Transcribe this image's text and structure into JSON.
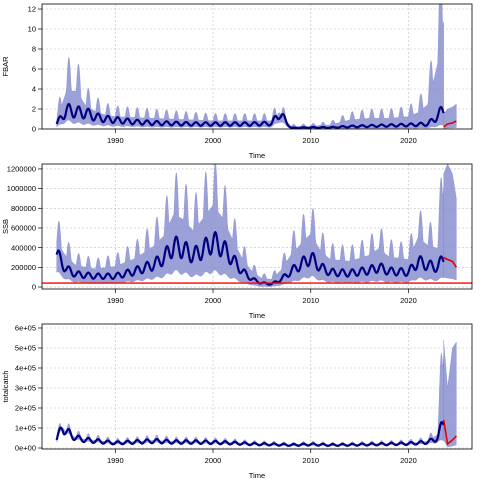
{
  "chart_data": [
    {
      "type": "area",
      "xlabel": "Time",
      "ylabel": "FBAR",
      "xlim": [
        1982.5,
        2026.5
      ],
      "ylim": [
        0,
        12.5
      ],
      "x_ticks": [
        1990,
        2000,
        2010,
        2020
      ],
      "y_ticks": [
        0,
        2,
        4,
        6,
        8,
        10,
        12
      ],
      "y_tick_labels": [
        "0",
        "2",
        "4",
        "6",
        "8",
        "10",
        "12"
      ],
      "grid": true,
      "estimate_end": 2023.6,
      "forecast_end": 2024.9,
      "series": [
        {
          "name": "",
          "x": [
            1984,
            1985,
            1986,
            1987,
            1988,
            1989,
            1990,
            1992,
            1994,
            1996,
            1998,
            2000,
            2002,
            2004,
            2006,
            2006.8,
            2008,
            2010,
            2012,
            2014,
            2016,
            2018,
            2020,
            2021,
            2022,
            2023,
            2023.6
          ],
          "median": [
            0.5,
            1.9,
            1.7,
            1.6,
            1.2,
            1.0,
            0.9,
            0.7,
            0.6,
            0.55,
            0.5,
            0.5,
            0.5,
            0.5,
            0.55,
            1.6,
            0.1,
            0.15,
            0.15,
            0.25,
            0.3,
            0.35,
            0.4,
            0.45,
            0.5,
            1.3,
            2.0
          ],
          "upper": [
            1.0,
            4.6,
            4.6,
            2.8,
            2.1,
            1.7,
            1.5,
            1.4,
            1.3,
            1.2,
            1.1,
            1.0,
            1.0,
            1.0,
            1.0,
            2.0,
            0.3,
            0.35,
            0.5,
            1.1,
            1.3,
            1.3,
            1.5,
            2.0,
            3.0,
            8.0,
            13.0
          ],
          "lower": [
            0.2,
            0.8,
            0.6,
            0.5,
            0.4,
            0.35,
            0.3,
            0.25,
            0.2,
            0.2,
            0.2,
            0.2,
            0.2,
            0.2,
            0.2,
            0.8,
            0.02,
            0.03,
            0.04,
            0.05,
            0.06,
            0.07,
            0.08,
            0.1,
            0.12,
            0.3,
            0.4
          ]
        }
      ],
      "forecast": {
        "x": [
          2023.6,
          2024.0,
          2024.5,
          2024.9
        ],
        "median": [
          0.2,
          0.5,
          0.6,
          0.8
        ],
        "upper": [
          1.5,
          2.0,
          2.2,
          2.5
        ],
        "lower": [
          0.05,
          0.1,
          0.1,
          0.15
        ]
      },
      "reference_line": null,
      "oscillation_amplitude": 0.35
    },
    {
      "type": "area",
      "xlabel": "Time",
      "ylabel": "SSB",
      "xlim": [
        1982.5,
        2026.5
      ],
      "ylim": [
        -20000,
        1250000
      ],
      "x_ticks": [
        1990,
        2000,
        2010,
        2020
      ],
      "y_ticks": [
        0,
        200000,
        400000,
        600000,
        800000,
        1000000,
        1200000
      ],
      "y_tick_labels": [
        "0",
        "200000",
        "400000",
        "600000",
        "800000",
        "1000000",
        "1200000"
      ],
      "grid": true,
      "estimate_end": 2023.6,
      "forecast_end": 2024.9,
      "series": [
        {
          "name": "",
          "x": [
            1984,
            1985,
            1986,
            1988,
            1990,
            1992,
            1994,
            1995,
            1996,
            1997,
            1998,
            1999,
            2000,
            2001,
            2002,
            2003,
            2004,
            2005,
            2006,
            2007,
            2008,
            2009,
            2010,
            2011,
            2012,
            2014,
            2016,
            2017,
            2018,
            2020,
            2021,
            2022,
            2023,
            2023.6
          ],
          "median": [
            330000,
            180000,
            130000,
            110000,
            110000,
            160000,
            230000,
            300000,
            420000,
            380000,
            320000,
            380000,
            460000,
            400000,
            280000,
            160000,
            80000,
            40000,
            30000,
            80000,
            160000,
            230000,
            300000,
            200000,
            150000,
            140000,
            170000,
            200000,
            160000,
            150000,
            260000,
            220000,
            200000,
            300000
          ],
          "upper": [
            520000,
            350000,
            250000,
            210000,
            240000,
            330000,
            480000,
            600000,
            850000,
            780000,
            650000,
            800000,
            950000,
            800000,
            550000,
            330000,
            180000,
            100000,
            90000,
            200000,
            380000,
            500000,
            620000,
            420000,
            320000,
            300000,
            370000,
            450000,
            350000,
            320000,
            580000,
            480000,
            450000,
            1150000
          ],
          "lower": [
            150000,
            80000,
            50000,
            40000,
            40000,
            60000,
            90000,
            110000,
            160000,
            140000,
            110000,
            130000,
            160000,
            130000,
            90000,
            50000,
            20000,
            5000,
            5000,
            20000,
            50000,
            80000,
            110000,
            70000,
            50000,
            45000,
            55000,
            65000,
            50000,
            50000,
            90000,
            75000,
            70000,
            100000
          ]
        }
      ],
      "forecast": {
        "x": [
          2023.6,
          2024.0,
          2024.5,
          2024.9
        ],
        "median": [
          300000,
          280000,
          260000,
          200000
        ],
        "upper": [
          1150000,
          1250000,
          1150000,
          900000
        ],
        "lower": [
          100000,
          90000,
          85000,
          70000
        ]
      },
      "reference_line": {
        "y": 40000,
        "color": "#ff0000"
      },
      "oscillation_amplitude": 0.25
    },
    {
      "type": "area",
      "xlabel": "Time",
      "ylabel": "totalcatch",
      "xlim": [
        1982.5,
        2026.5
      ],
      "ylim": [
        -5000,
        620000
      ],
      "x_ticks": [
        1990,
        2000,
        2010,
        2020
      ],
      "y_ticks": [
        0,
        100000,
        200000,
        300000,
        400000,
        500000,
        600000
      ],
      "y_tick_labels": [
        "0e+00",
        "1e+05",
        "2e+05",
        "3e+05",
        "4e+05",
        "5e+05",
        "6e+05"
      ],
      "grid": true,
      "estimate_end": 2023.6,
      "forecast_end": 2024.9,
      "series": [
        {
          "name": "",
          "x": [
            1984,
            1984.6,
            1985,
            1986,
            1987,
            1988,
            1990,
            1992,
            1994,
            1996,
            1998,
            2000,
            2002,
            2004,
            2006,
            2008,
            2010,
            2012,
            2014,
            2016,
            2018,
            2020,
            2021,
            2022,
            2023,
            2023.6
          ],
          "median": [
            40000,
            110000,
            80000,
            50000,
            40000,
            35000,
            25000,
            30000,
            35000,
            30000,
            30000,
            28000,
            25000,
            20000,
            18000,
            15000,
            18000,
            15000,
            16000,
            18000,
            20000,
            22000,
            25000,
            30000,
            50000,
            140000
          ],
          "upper": [
            50000,
            120000,
            90000,
            60000,
            50000,
            45000,
            33000,
            38000,
            45000,
            38000,
            38000,
            35000,
            32000,
            26000,
            24000,
            20000,
            24000,
            20000,
            21000,
            24000,
            26000,
            29000,
            33000,
            40000,
            80000,
            540000
          ],
          "lower": [
            30000,
            100000,
            70000,
            40000,
            30000,
            27000,
            18000,
            22000,
            26000,
            22000,
            22000,
            21000,
            18000,
            14000,
            12000,
            10000,
            12000,
            10000,
            11000,
            12000,
            14000,
            16000,
            18000,
            21000,
            30000,
            40000
          ]
        }
      ],
      "forecast": {
        "x": [
          2023.6,
          2024.0,
          2024.5,
          2024.9
        ],
        "median": [
          140000,
          20000,
          40000,
          60000
        ],
        "upper": [
          540000,
          300000,
          500000,
          530000
        ],
        "lower": [
          40000,
          5000,
          10000,
          15000
        ]
      },
      "reference_line": null,
      "oscillation_amplitude": 0.3
    }
  ]
}
